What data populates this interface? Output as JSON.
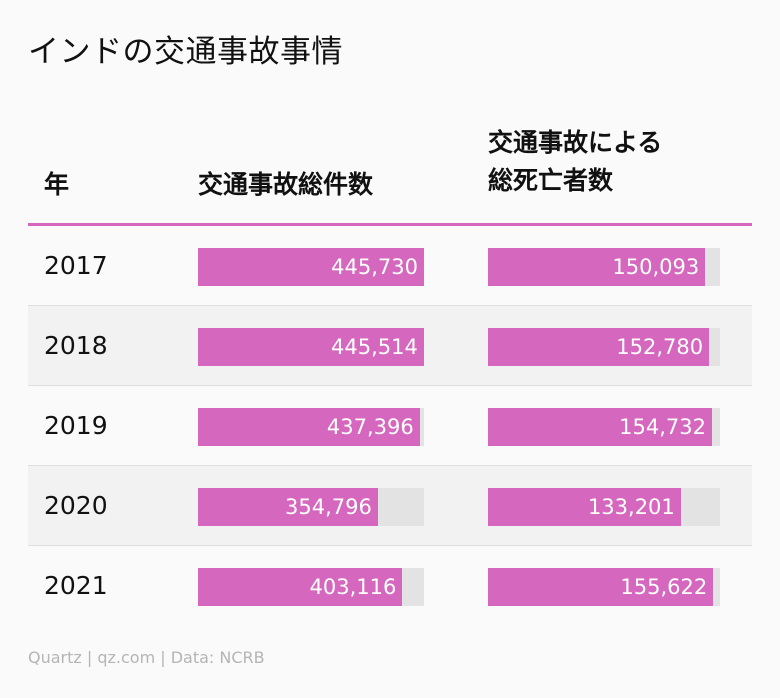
{
  "title": "インドの交通事故事情",
  "chart_data": {
    "type": "table",
    "columns": [
      "年",
      "交通事故総件数",
      "交通事故による\n総死亡者数"
    ],
    "rows": [
      {
        "year": "2017",
        "accidents": 445730,
        "accidents_label": "445,730",
        "deaths": 150093,
        "deaths_label": "150,093"
      },
      {
        "year": "2018",
        "accidents": 445514,
        "accidents_label": "445,514",
        "deaths": 152780,
        "deaths_label": "152,780"
      },
      {
        "year": "2019",
        "accidents": 437396,
        "accidents_label": "437,396",
        "deaths": 154732,
        "deaths_label": "154,732"
      },
      {
        "year": "2020",
        "accidents": 354796,
        "accidents_label": "354,796",
        "deaths": 133201,
        "deaths_label": "133,201"
      },
      {
        "year": "2021",
        "accidents": 403116,
        "accidents_label": "403,116",
        "deaths": 155622,
        "deaths_label": "155,622"
      }
    ],
    "bar_color": "#d667be",
    "track_color": "#e3e3e3"
  },
  "source": "Quartz | qz.com | Data: NCRB"
}
